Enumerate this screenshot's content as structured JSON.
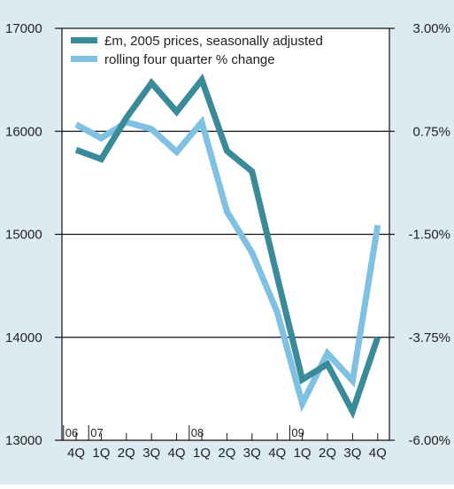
{
  "chart_data": {
    "type": "line",
    "title": "",
    "xlabel": "",
    "ylabel_left": "",
    "ylabel_right": "",
    "categories": [
      "4Q",
      "1Q",
      "2Q",
      "3Q",
      "4Q",
      "1Q",
      "2Q",
      "3Q",
      "4Q",
      "1Q",
      "2Q",
      "3Q",
      "4Q"
    ],
    "year_labels": [
      {
        "text": "06",
        "index": 0
      },
      {
        "text": "07",
        "index": 1
      },
      {
        "text": "08",
        "index": 5
      },
      {
        "text": "09",
        "index": 9
      }
    ],
    "left_axis": {
      "min": 13000,
      "max": 17000,
      "ticks": [
        13000,
        14000,
        15000,
        16000,
        17000
      ],
      "tick_labels": [
        "13000",
        "14000",
        "15000",
        "16000",
        "17000"
      ]
    },
    "right_axis": {
      "min": -6.0,
      "max": 3.0,
      "ticks": [
        -6.0,
        -3.75,
        -1.5,
        0.75,
        3.0
      ],
      "tick_labels": [
        "-6.00%",
        "-3.75%",
        "-1.50%",
        "0.75%",
        "3.00%"
      ]
    },
    "grid": true,
    "legend_position": "top-left",
    "series": [
      {
        "name": "£m, 2005 prices, seasonally adjusted",
        "axis": "left",
        "color": "#3a8b99",
        "values": [
          15820,
          15730,
          16130,
          16470,
          16190,
          16500,
          15810,
          15610,
          14590,
          13590,
          13740,
          13280,
          14000
        ]
      },
      {
        "name": "rolling four quarter % change",
        "axis": "right",
        "color": "#7fc1e2",
        "values": [
          0.9,
          0.6,
          0.95,
          0.8,
          0.3,
          0.95,
          -1.0,
          -1.9,
          -3.2,
          -5.2,
          -4.1,
          -4.7,
          -1.3
        ]
      }
    ],
    "colors": {
      "background": "#dcebf2",
      "plot": "#ffffff",
      "grid": "#111111",
      "text": "#222222"
    }
  }
}
